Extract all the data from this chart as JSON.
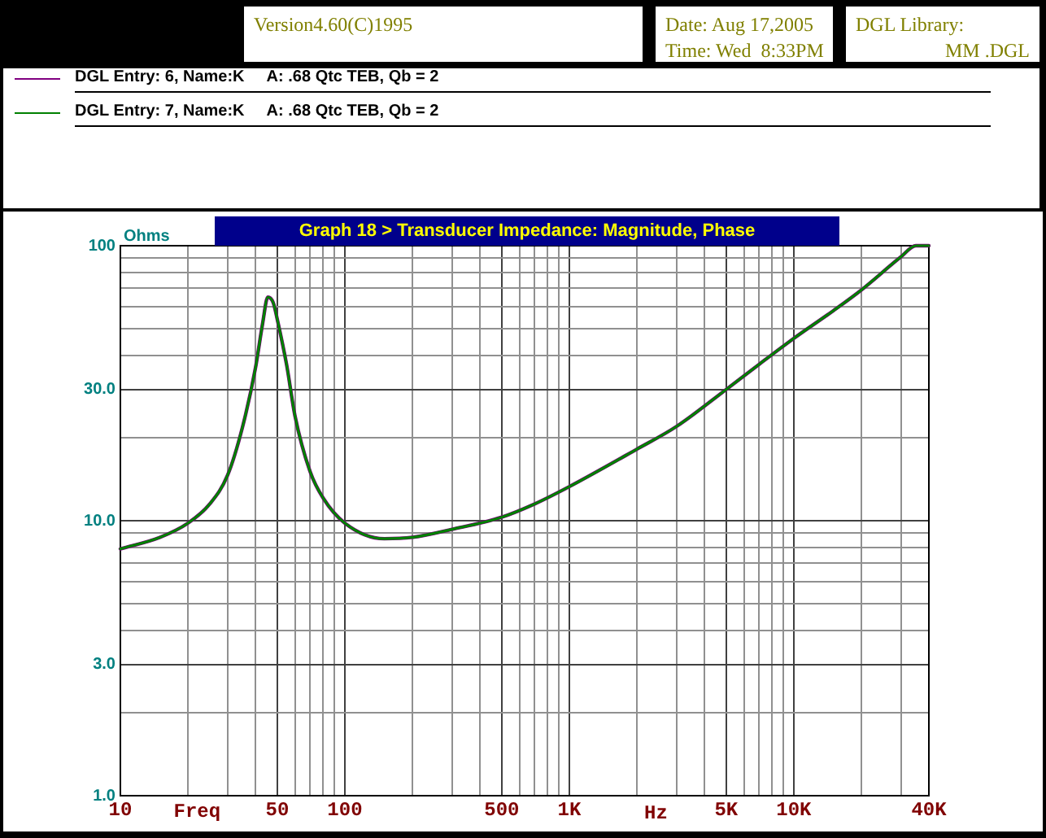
{
  "chart_data": {
    "type": "line",
    "title": "Graph 18 > Transducer Impedance: Magnitude, Phase",
    "xlabel": "Freq",
    "ylabel": "Ohms",
    "annotations": [
      "Version4.60(C)1995",
      "Date: Aug 17,2005",
      "Time: Wed  8:33PM",
      "DGL Library:",
      "MM .DGL",
      "Hz"
    ],
    "log": "xy",
    "grid": true,
    "legend": "top",
    "marker": "none",
    "line_style": "solid",
    "xlim": [
      10,
      40000
    ],
    "ylim": [
      1,
      100
    ],
    "xticks": [
      10,
      {
        "value": 20,
        "label": null
      },
      {
        "value": 30,
        "label": null
      },
      {
        "value": 40,
        "label": null
      },
      50,
      {
        "value": 60,
        "label": null
      },
      {
        "value": 70,
        "label": null
      },
      {
        "value": 80,
        "label": null
      },
      {
        "value": 90,
        "label": null
      },
      100,
      {
        "value": 200,
        "label": null
      },
      {
        "value": 300,
        "label": null
      },
      {
        "value": 400,
        "label": null
      },
      500,
      {
        "value": 600,
        "label": null
      },
      {
        "value": 700,
        "label": null
      },
      {
        "value": 800,
        "label": null
      },
      {
        "value": 900,
        "label": null
      },
      {
        "value": 1000,
        "label": "1K"
      },
      {
        "value": 2000,
        "label": null
      },
      {
        "value": 3000,
        "label": null
      },
      {
        "value": 4000,
        "label": null
      },
      {
        "value": 5000,
        "label": "5K"
      },
      {
        "value": 6000,
        "label": null
      },
      {
        "value": 7000,
        "label": null
      },
      {
        "value": 8000,
        "label": null
      },
      {
        "value": 9000,
        "label": null
      },
      {
        "value": 10000,
        "label": "10K"
      },
      {
        "value": 20000,
        "label": null
      },
      {
        "value": 30000,
        "label": null
      },
      {
        "value": 40000,
        "label": "40K"
      }
    ],
    "yticks": [
      {
        "value": 1,
        "label": "1.0"
      },
      {
        "value": 2,
        "label": null
      },
      {
        "value": 3,
        "label": "3.0"
      },
      {
        "value": 4,
        "label": null
      },
      {
        "value": 5,
        "label": null
      },
      {
        "value": 6,
        "label": null
      },
      {
        "value": 7,
        "label": null
      },
      {
        "value": 8,
        "label": null
      },
      {
        "value": 9,
        "label": null
      },
      {
        "value": 10,
        "label": "10.0"
      },
      {
        "value": 20,
        "label": null
      },
      {
        "value": 30,
        "label": "30.0"
      },
      {
        "value": 40,
        "label": null
      },
      {
        "value": 50,
        "label": null
      },
      {
        "value": 60,
        "label": null
      },
      {
        "value": 70,
        "label": null
      },
      {
        "value": 80,
        "label": null
      },
      {
        "value": 90,
        "label": null
      },
      100
    ],
    "x": [
      10,
      15,
      20,
      25,
      30,
      35,
      40,
      43,
      45.4,
      48,
      50,
      55,
      60,
      70,
      80,
      100,
      150,
      200,
      300,
      500,
      700,
      1000,
      2000,
      3000,
      5000,
      7000,
      10000,
      15000,
      20000,
      30000,
      35000,
      40000
    ],
    "series": [
      {
        "name": "DGL Entry: 6, Name:K     A: .68 Qtc TEB, Qb = 2",
        "color": "#800080",
        "values": [
          7.9,
          8.7,
          9.8,
          11.5,
          14.6,
          21.9,
          36,
          52,
          65,
          62,
          54,
          37,
          24,
          15.1,
          12.1,
          9.8,
          8.6,
          8.7,
          9.3,
          10.3,
          11.5,
          13.3,
          18.2,
          22,
          30,
          37,
          46,
          58,
          69,
          91,
          100,
          100
        ]
      },
      {
        "name": "DGL Entry: 7, Name:K     A: .68 Qtc TEB, Qb = 2",
        "color": "#008000",
        "values": [
          7.9,
          8.7,
          9.8,
          11.5,
          14.6,
          21.9,
          36,
          52,
          65,
          62,
          54,
          37,
          24,
          15.1,
          12.1,
          9.8,
          8.6,
          8.7,
          9.3,
          10.3,
          11.5,
          13.3,
          18.2,
          22,
          30,
          37,
          46,
          58,
          69,
          91,
          100,
          100
        ]
      }
    ]
  }
}
